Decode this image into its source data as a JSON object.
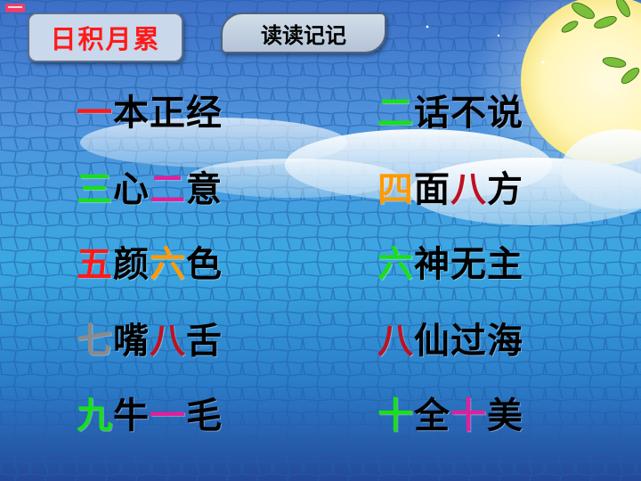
{
  "colors": {
    "red": "#ff1a1a",
    "green": "#18e018",
    "magenta": "#e0209a",
    "orange": "#ff9a00",
    "darkred": "#c01020",
    "gray": "#8a8a8a",
    "black": "#000000"
  },
  "header": {
    "title": "日积月累",
    "tag": "读读记记"
  },
  "idioms": [
    {
      "chars": [
        {
          "c": "一",
          "color": "red"
        },
        {
          "c": "本",
          "color": "black"
        },
        {
          "c": "正",
          "color": "black"
        },
        {
          "c": "经",
          "color": "black"
        }
      ]
    },
    {
      "chars": [
        {
          "c": "二",
          "color": "green"
        },
        {
          "c": "话",
          "color": "black"
        },
        {
          "c": "不",
          "color": "black"
        },
        {
          "c": "说",
          "color": "black"
        }
      ]
    },
    {
      "chars": [
        {
          "c": "三",
          "color": "green"
        },
        {
          "c": "心",
          "color": "black"
        },
        {
          "c": "二",
          "color": "magenta"
        },
        {
          "c": "意",
          "color": "black"
        }
      ]
    },
    {
      "chars": [
        {
          "c": "四",
          "color": "orange"
        },
        {
          "c": "面",
          "color": "black"
        },
        {
          "c": "八",
          "color": "darkred"
        },
        {
          "c": "方",
          "color": "black"
        }
      ]
    },
    {
      "chars": [
        {
          "c": "五",
          "color": "red"
        },
        {
          "c": "颜",
          "color": "black"
        },
        {
          "c": "六",
          "color": "orange"
        },
        {
          "c": "色",
          "color": "black"
        }
      ]
    },
    {
      "chars": [
        {
          "c": "六",
          "color": "green"
        },
        {
          "c": "神",
          "color": "black"
        },
        {
          "c": "无",
          "color": "black"
        },
        {
          "c": "主",
          "color": "black"
        }
      ]
    },
    {
      "chars": [
        {
          "c": "七",
          "color": "gray"
        },
        {
          "c": "嘴",
          "color": "black"
        },
        {
          "c": "八",
          "color": "darkred"
        },
        {
          "c": "舌",
          "color": "black"
        }
      ]
    },
    {
      "chars": [
        {
          "c": "八",
          "color": "darkred"
        },
        {
          "c": "仙",
          "color": "black"
        },
        {
          "c": "过",
          "color": "black"
        },
        {
          "c": "海",
          "color": "black"
        }
      ]
    },
    {
      "chars": [
        {
          "c": "九",
          "color": "green"
        },
        {
          "c": "牛",
          "color": "black"
        },
        {
          "c": "一",
          "color": "magenta"
        },
        {
          "c": "毛",
          "color": "black"
        }
      ]
    },
    {
      "chars": [
        {
          "c": "十",
          "color": "green"
        },
        {
          "c": "全",
          "color": "black"
        },
        {
          "c": "十",
          "color": "magenta"
        },
        {
          "c": "美",
          "color": "black"
        }
      ]
    }
  ]
}
